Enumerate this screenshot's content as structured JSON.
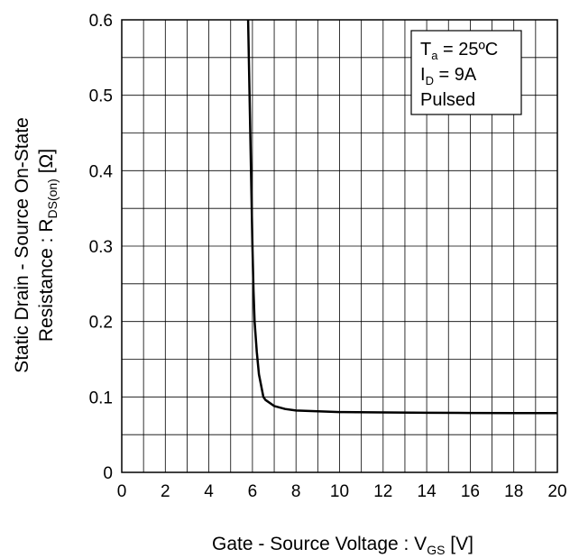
{
  "chart_data": {
    "type": "line",
    "xlabel": {
      "main": "Gate - Source Voltage : V",
      "sub": "GS",
      "unit": " [V]"
    },
    "ylabel": {
      "line1": "Static Drain - Source On-State",
      "line2_main": "Resistance : R",
      "line2_sub": "DS(on)",
      "line2_unit": " [Ω]"
    },
    "xlim": [
      0,
      20
    ],
    "ylim": [
      0,
      0.6
    ],
    "x_ticks": [
      "0",
      "2",
      "4",
      "6",
      "8",
      "10",
      "12",
      "14",
      "16",
      "18",
      "20"
    ],
    "y_ticks": [
      "0",
      "0.1",
      "0.2",
      "0.3",
      "0.4",
      "0.5",
      "0.6"
    ],
    "grid": true,
    "legend_box": {
      "line1_main": "T",
      "line1_sub": "a",
      "line1_rest": " = 25ºC",
      "line2_main": "I",
      "line2_sub": "D",
      "line2_rest": " = 9A",
      "line3": "Pulsed"
    },
    "series": [
      {
        "x": [
          5.8,
          5.9,
          6.0,
          6.05,
          6.1,
          6.2,
          6.3,
          6.5,
          6.6,
          7.0,
          7.5,
          8.0,
          9.0,
          10.0,
          12.0,
          14.0,
          16.0,
          18.0,
          20.0
        ],
        "y": [
          0.6,
          0.45,
          0.3,
          0.24,
          0.2,
          0.16,
          0.13,
          0.1,
          0.096,
          0.088,
          0.084,
          0.082,
          0.081,
          0.08,
          0.0795,
          0.079,
          0.0788,
          0.0787,
          0.0786
        ]
      }
    ]
  }
}
